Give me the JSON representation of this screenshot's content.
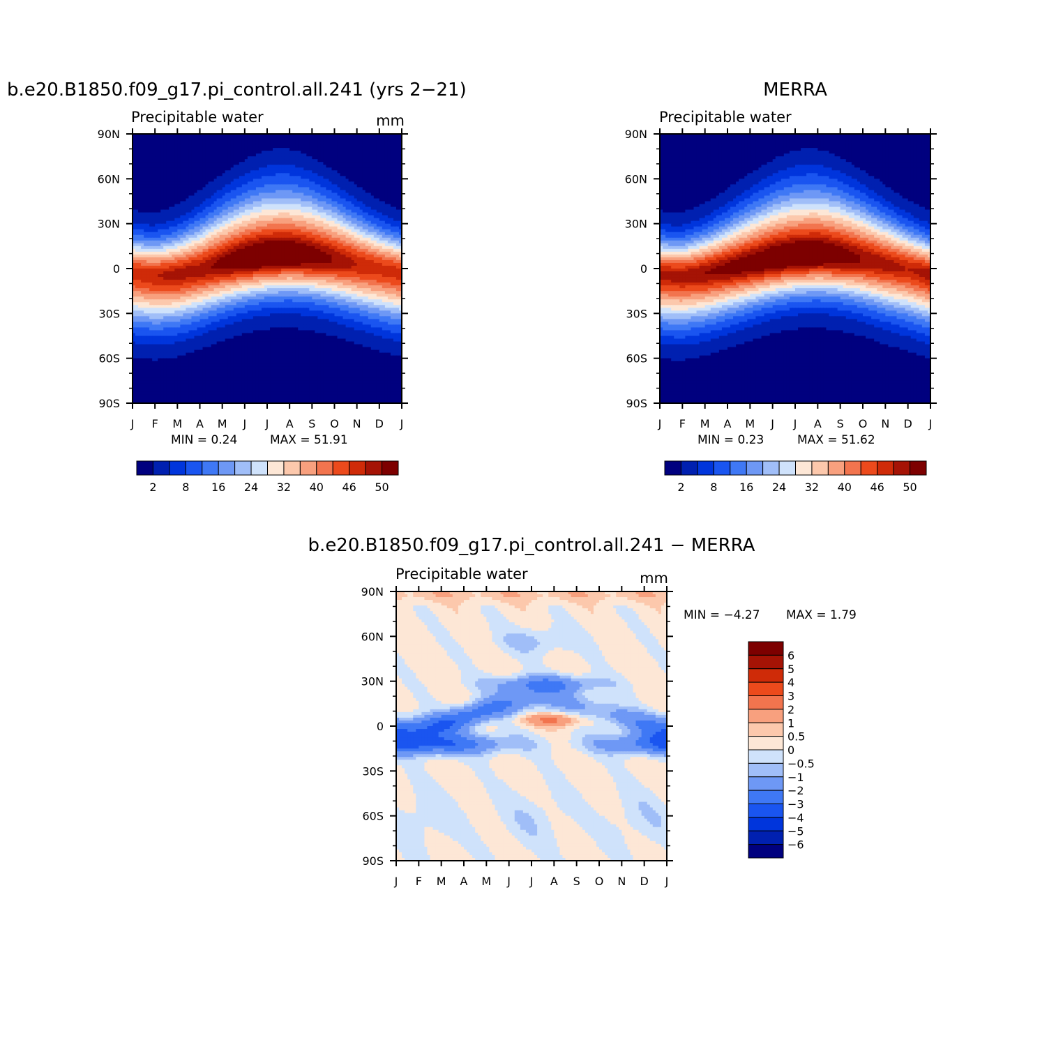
{
  "chart_data": [
    {
      "type": "heatmap",
      "id": "model",
      "title": "b.e20.B1850.f09_g17.pi_control.all.241 (yrs 2-21)",
      "subtitle": "Precipitable water",
      "units": "mm",
      "x_ticks": [
        "J",
        "F",
        "M",
        "A",
        "M",
        "J",
        "J",
        "A",
        "S",
        "O",
        "N",
        "D",
        "J"
      ],
      "y_ticks": [
        "90N",
        "60N",
        "30N",
        "0",
        "30S",
        "60S",
        "90S"
      ],
      "xlim": [
        0,
        12
      ],
      "ylim": [
        -90,
        90
      ],
      "min_text": "MIN =   0.24",
      "max_text": "MAX =  51.91",
      "min": 0.24,
      "max": 51.91,
      "colorbar_levels": [
        2,
        5,
        8,
        12,
        16,
        20,
        24,
        28,
        32,
        36,
        40,
        43,
        46,
        48,
        50
      ],
      "colorbar_labels": [
        "2",
        "8",
        "16",
        "24",
        "32",
        "40",
        "46",
        "50"
      ],
      "itcz_lat_by_month": [
        -3,
        -5,
        -4,
        -1,
        3,
        6,
        8,
        9,
        8,
        6,
        3,
        0,
        -3
      ],
      "equator_peak_by_month": [
        45,
        46,
        47,
        47,
        49,
        51,
        51.9,
        51.5,
        50,
        48,
        46,
        45,
        45
      ]
    },
    {
      "type": "heatmap",
      "id": "obs",
      "title": "MERRA",
      "subtitle": "Precipitable water",
      "units": "",
      "x_ticks": [
        "J",
        "F",
        "M",
        "A",
        "M",
        "J",
        "J",
        "A",
        "S",
        "O",
        "N",
        "D",
        "J"
      ],
      "y_ticks": [
        "90N",
        "60N",
        "30N",
        "0",
        "30S",
        "60S",
        "90S"
      ],
      "xlim": [
        0,
        12
      ],
      "ylim": [
        -90,
        90
      ],
      "min_text": "MIN =   0.23",
      "max_text": "MAX =  51.62",
      "min": 0.23,
      "max": 51.62,
      "colorbar_levels": [
        2,
        5,
        8,
        12,
        16,
        20,
        24,
        28,
        32,
        36,
        40,
        43,
        46,
        48,
        50
      ],
      "colorbar_labels": [
        "2",
        "8",
        "16",
        "24",
        "32",
        "40",
        "46",
        "50"
      ],
      "itcz_lat_by_month": [
        -4,
        -5,
        -3,
        0,
        3,
        6,
        8,
        9,
        8,
        6,
        3,
        0,
        -4
      ],
      "equator_peak_by_month": [
        47,
        47,
        48,
        49,
        50,
        51,
        51.6,
        51.4,
        50,
        48,
        47,
        46,
        47
      ]
    },
    {
      "type": "heatmap",
      "id": "diff",
      "title": "b.e20.B1850.f09_g17.pi_control.all.241 - MERRA",
      "subtitle": "Precipitable water",
      "units": "mm",
      "x_ticks": [
        "J",
        "F",
        "M",
        "A",
        "M",
        "J",
        "J",
        "A",
        "S",
        "O",
        "N",
        "D",
        "J"
      ],
      "y_ticks": [
        "90N",
        "60N",
        "30N",
        "0",
        "30S",
        "60S",
        "90S"
      ],
      "xlim": [
        0,
        12
      ],
      "ylim": [
        -90,
        90
      ],
      "min_text": "MIN =  -4.27",
      "max_text": "MAX =    1.79",
      "min": -4.27,
      "max": 1.79,
      "colorbar_levels": [
        6,
        5,
        4,
        3,
        2,
        1,
        0.5,
        0,
        -0.5,
        -1,
        -2,
        -3,
        -4,
        -5,
        -6
      ],
      "colorbar_labels": [
        "6",
        "5",
        "4",
        "3",
        "2",
        "1",
        "0.5",
        "0",
        "-0.5",
        "-1",
        "-2",
        "-3",
        "-4",
        "-5",
        "-6"
      ]
    }
  ],
  "palette": [
    "#00007f",
    "#0020b0",
    "#0035dc",
    "#1a55f0",
    "#3f78f5",
    "#6e98f5",
    "#a0bef8",
    "#cfe2fb",
    "#fde7d6",
    "#fcc8ac",
    "#f8a07e",
    "#f2744e",
    "#ec4a1c",
    "#cf2b08",
    "#a51305",
    "#7d0000"
  ]
}
